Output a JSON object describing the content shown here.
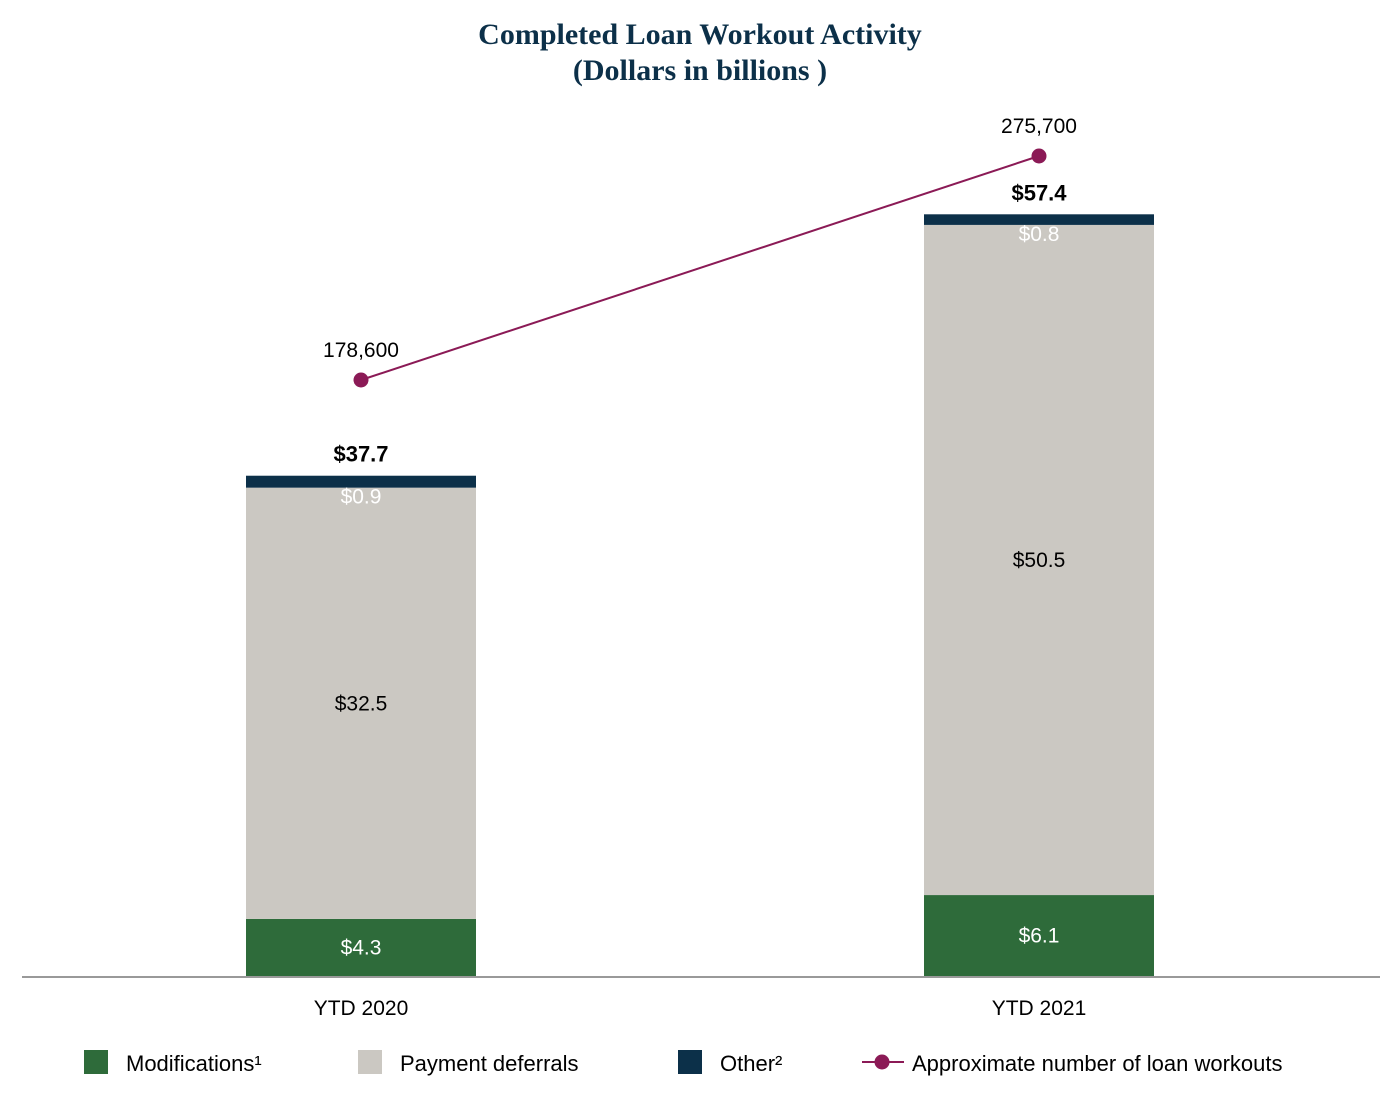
{
  "chart_data": {
    "type": "bar",
    "stacked": true,
    "title": "Completed Loan Workout Activity",
    "subtitle": "(Dollars in billions )",
    "categories": [
      "YTD 2020",
      "YTD 2021"
    ],
    "series": [
      {
        "name": "Modifications¹",
        "values": [
          4.3,
          6.1
        ],
        "labels": [
          "$4.3",
          "$6.1"
        ],
        "color": "#2e6b3a",
        "label_color": "#ffffff"
      },
      {
        "name": "Payment deferrals",
        "values": [
          32.5,
          50.5
        ],
        "labels": [
          "$32.5",
          "$50.5"
        ],
        "color": "#cbc8c2",
        "label_color": "#000000"
      },
      {
        "name": "Other²",
        "values": [
          0.9,
          0.8
        ],
        "labels": [
          "$0.9",
          "$0.8"
        ],
        "color": "#0c3049",
        "label_color": "#ffffff"
      }
    ],
    "totals": [
      "$37.7",
      "$57.4"
    ],
    "line_series": {
      "name": "Approximate number of loan workouts",
      "values": [
        178600,
        275700
      ],
      "labels": [
        "178,600",
        "275,700"
      ],
      "color": "#8b1a56"
    },
    "axis_color": "#999999",
    "legend_position": "bottom"
  }
}
